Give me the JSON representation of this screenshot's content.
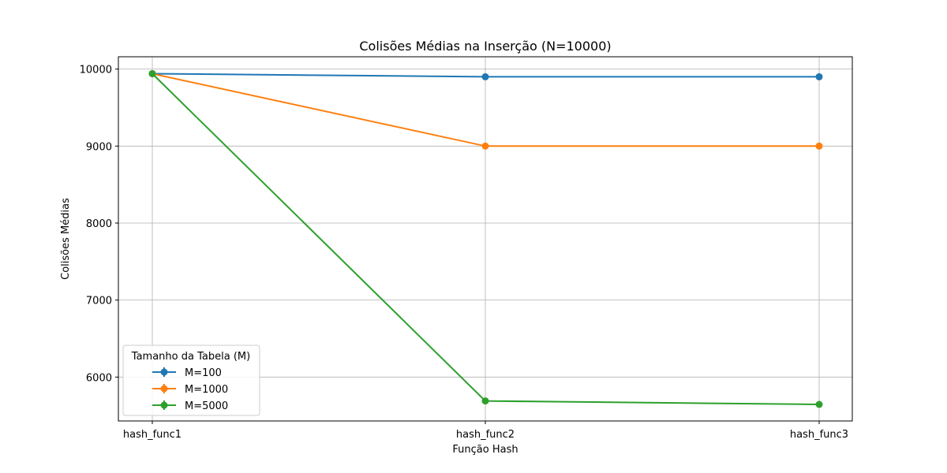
{
  "chart_data": {
    "type": "line",
    "title": "Colisões Médias na Inserção (N=10000)",
    "xlabel": "Função Hash",
    "ylabel": "Colisões Médias",
    "categories": [
      "hash_func1",
      "hash_func2",
      "hash_func3"
    ],
    "ylim": [
      5430,
      10160
    ],
    "yticks": [
      6000,
      7000,
      8000,
      9000,
      10000
    ],
    "grid": true,
    "legend": {
      "title": "Tamanho da Tabela (M)",
      "placement": "lower-left"
    },
    "series": [
      {
        "name": "M=100",
        "color": "#1f77b4",
        "values": [
          9940,
          9900,
          9900
        ]
      },
      {
        "name": "M=1000",
        "color": "#ff7f0e",
        "values": [
          9940,
          9000,
          9000
        ]
      },
      {
        "name": "M=5000",
        "color": "#2ca02c",
        "values": [
          9940,
          5690,
          5645
        ]
      }
    ]
  }
}
